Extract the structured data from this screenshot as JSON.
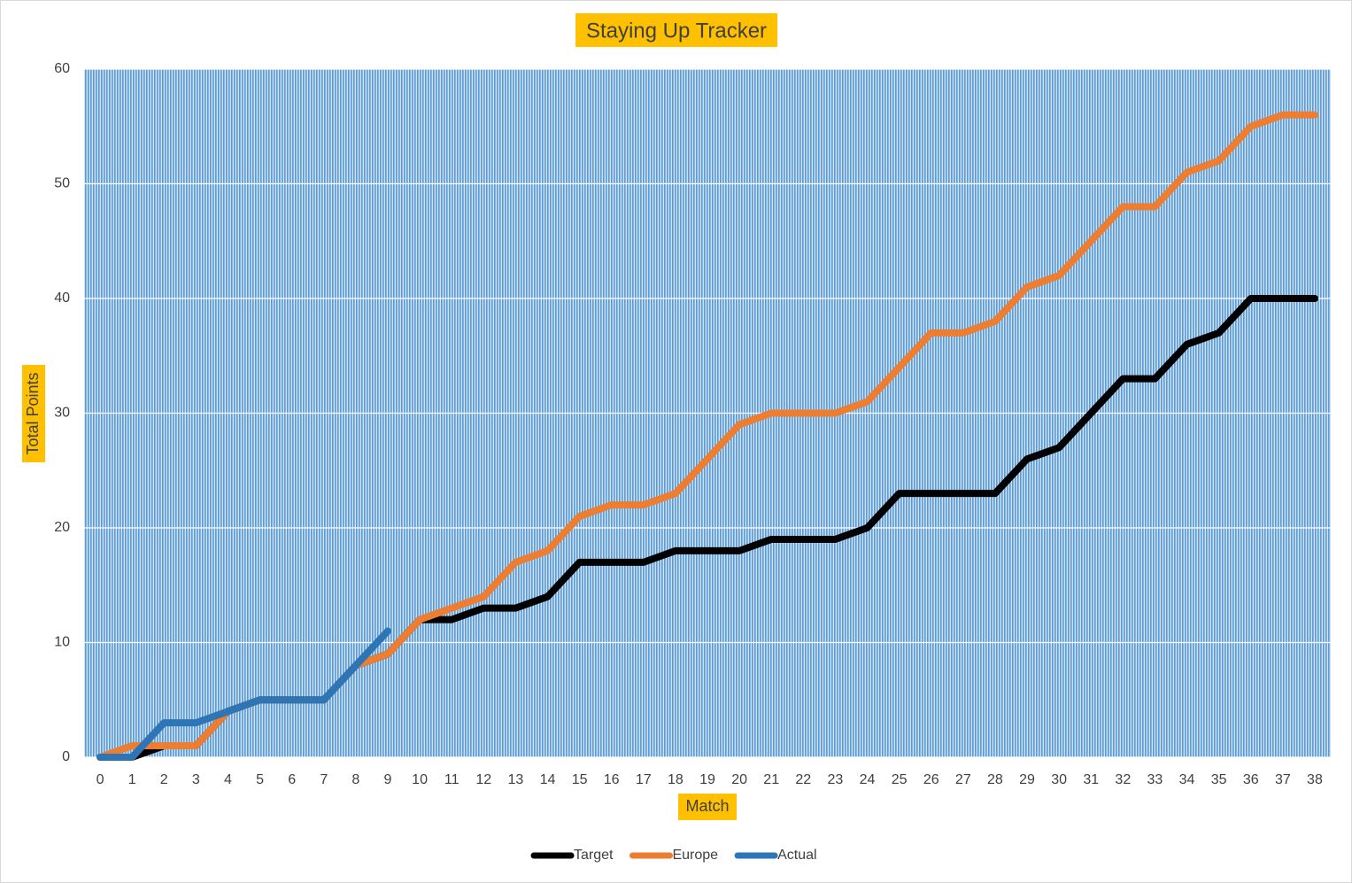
{
  "chart_data": {
    "type": "line",
    "title": "Staying Up Tracker",
    "x_label": "Match",
    "y_label": "Total Points",
    "categories": [
      "0",
      "1",
      "2",
      "3",
      "4",
      "5",
      "6",
      "7",
      "8",
      "9",
      "10",
      "11",
      "12",
      "13",
      "14",
      "15",
      "16",
      "17",
      "18",
      "19",
      "20",
      "21",
      "22",
      "23",
      "24",
      "25",
      "26",
      "27",
      "28",
      "29",
      "30",
      "31",
      "32",
      "33",
      "34",
      "35",
      "36",
      "37",
      "38"
    ],
    "series": [
      {
        "name": "Target",
        "color": "#000000",
        "values": [
          0,
          0,
          1,
          1,
          4,
          5,
          5,
          5,
          8,
          9,
          12,
          12,
          13,
          13,
          14,
          17,
          17,
          17,
          18,
          18,
          18,
          19,
          19,
          19,
          20,
          23,
          23,
          23,
          23,
          26,
          27,
          30,
          33,
          33,
          36,
          37,
          40,
          40,
          40
        ]
      },
      {
        "name": "Europe",
        "color": "#ed7d31",
        "values": [
          0,
          1,
          1,
          1,
          4,
          5,
          5,
          5,
          8,
          9,
          12,
          13,
          14,
          17,
          18,
          21,
          22,
          22,
          23,
          26,
          29,
          30,
          30,
          30,
          31,
          34,
          37,
          37,
          38,
          41,
          42,
          45,
          48,
          48,
          51,
          52,
          55,
          56,
          56
        ]
      },
      {
        "name": "Actual",
        "color": "#2e75b6",
        "values": [
          0,
          0,
          3,
          3,
          4,
          5,
          5,
          5,
          8,
          11,
          null,
          null,
          null,
          null,
          null,
          null,
          null,
          null,
          null,
          null,
          null,
          null,
          null,
          null,
          null,
          null,
          null,
          null,
          null,
          null,
          null,
          null,
          null,
          null,
          null,
          null,
          null,
          null,
          null
        ]
      }
    ],
    "ylim": [
      0,
      60
    ],
    "yticks": [
      0,
      10,
      20,
      30,
      40,
      50,
      60
    ],
    "grid": true,
    "legend": "bottom"
  }
}
